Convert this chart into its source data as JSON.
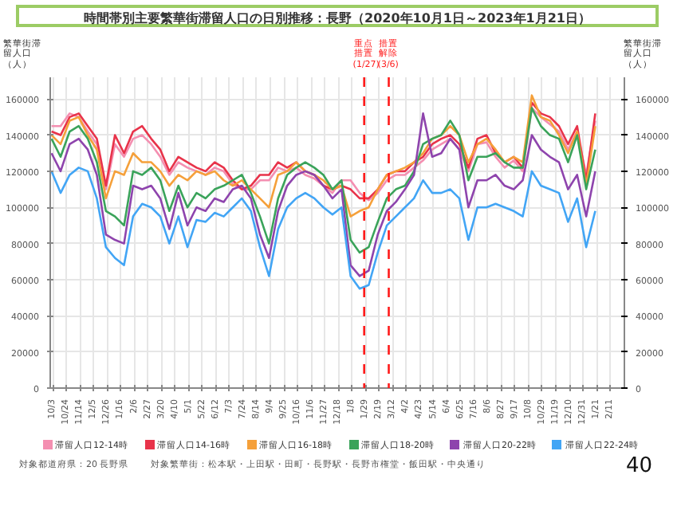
{
  "chart_data": {
    "type": "line",
    "title": "時間帯別主要繁華街滞留人口の日別推移：長野（2020年10月1日～2023年1月21日）",
    "ylabel": "繁華街滞留人口（人）",
    "y2label": "繁華街滞留人口（人）",
    "x": [
      "2020-10-01",
      "2020-10-15",
      "2020-10-29",
      "2020-11-12",
      "2020-11-26",
      "2020-12-10",
      "2020-12-24",
      "2021-01-07",
      "2021-01-21",
      "2021-02-04",
      "2021-02-18",
      "2021-03-04",
      "2021-03-18",
      "2021-04-01",
      "2021-04-15",
      "2021-04-29",
      "2021-05-13",
      "2021-05-27",
      "2021-06-10",
      "2021-06-24",
      "2021-07-08",
      "2021-07-22",
      "2021-08-05",
      "2021-08-19",
      "2021-09-02",
      "2021-09-16",
      "2021-09-30",
      "2021-10-14",
      "2021-10-28",
      "2021-11-11",
      "2021-11-25",
      "2021-12-09",
      "2021-12-23",
      "2022-01-06",
      "2022-01-20",
      "2022-02-03",
      "2022-02-17",
      "2022-03-03",
      "2022-03-17",
      "2022-03-31",
      "2022-04-14",
      "2022-04-28",
      "2022-05-12",
      "2022-05-26",
      "2022-06-09",
      "2022-06-23",
      "2022-07-07",
      "2022-07-21",
      "2022-08-04",
      "2022-08-18",
      "2022-09-01",
      "2022-09-15",
      "2022-09-29",
      "2022-10-13",
      "2022-10-27",
      "2022-11-10",
      "2022-11-24",
      "2022-12-08",
      "2022-12-22",
      "2023-01-05",
      "2023-01-19"
    ],
    "series": [
      {
        "name": "滞留人口12-14時",
        "color": "#f48fb1",
        "values": [
          145000,
          145000,
          152000,
          150000,
          142000,
          135000,
          110000,
          135000,
          128000,
          138000,
          140000,
          135000,
          128000,
          118000,
          125000,
          122000,
          120000,
          118000,
          122000,
          120000,
          113000,
          110000,
          110000,
          115000,
          115000,
          122000,
          120000,
          122000,
          118000,
          116000,
          112000,
          108000,
          115000,
          115000,
          108000,
          104000,
          108000,
          115000,
          118000,
          118000,
          122000,
          126000,
          132000,
          135000,
          138000,
          132000,
          120000,
          135000,
          136000,
          128000,
          122000,
          126000,
          120000,
          155000,
          150000,
          146000,
          142000,
          132000,
          142000,
          118000,
          148000
        ]
      },
      {
        "name": "滞留人口14-16時",
        "color": "#e8334a",
        "values": [
          142000,
          140000,
          150000,
          152000,
          145000,
          138000,
          112000,
          140000,
          130000,
          142000,
          145000,
          138000,
          132000,
          120000,
          128000,
          125000,
          122000,
          120000,
          125000,
          122000,
          115000,
          110000,
          112000,
          118000,
          118000,
          125000,
          122000,
          125000,
          120000,
          118000,
          112000,
          110000,
          112000,
          110000,
          105000,
          105000,
          110000,
          118000,
          120000,
          120000,
          125000,
          128000,
          135000,
          138000,
          140000,
          135000,
          122000,
          138000,
          140000,
          130000,
          125000,
          128000,
          122000,
          158000,
          152000,
          150000,
          145000,
          135000,
          145000,
          115000,
          152000
        ]
      },
      {
        "name": "滞留人口16-18時",
        "color": "#f5a03a",
        "values": [
          140000,
          135000,
          148000,
          150000,
          140000,
          132000,
          105000,
          120000,
          118000,
          130000,
          125000,
          125000,
          120000,
          112000,
          118000,
          115000,
          120000,
          118000,
          120000,
          115000,
          112000,
          115000,
          110000,
          105000,
          100000,
          118000,
          120000,
          125000,
          120000,
          118000,
          115000,
          110000,
          112000,
          95000,
          98000,
          100000,
          110000,
          118000,
          120000,
          122000,
          125000,
          130000,
          138000,
          140000,
          145000,
          140000,
          125000,
          135000,
          138000,
          132000,
          125000,
          128000,
          125000,
          162000,
          150000,
          148000,
          140000,
          130000,
          142000,
          112000,
          145000
        ]
      },
      {
        "name": "滞留人口18-20時",
        "color": "#3aa35a",
        "values": [
          138000,
          128000,
          142000,
          145000,
          138000,
          125000,
          98000,
          95000,
          90000,
          120000,
          118000,
          122000,
          115000,
          98000,
          112000,
          100000,
          108000,
          105000,
          110000,
          112000,
          115000,
          118000,
          108000,
          95000,
          80000,
          105000,
          118000,
          122000,
          125000,
          122000,
          118000,
          110000,
          115000,
          82000,
          75000,
          78000,
          92000,
          105000,
          110000,
          112000,
          120000,
          135000,
          138000,
          140000,
          148000,
          140000,
          115000,
          128000,
          128000,
          130000,
          125000,
          122000,
          122000,
          155000,
          145000,
          140000,
          138000,
          125000,
          140000,
          110000,
          132000
        ]
      },
      {
        "name": "滞留人口20-22時",
        "color": "#8e44ad",
        "values": [
          130000,
          120000,
          135000,
          138000,
          132000,
          118000,
          85000,
          82000,
          80000,
          112000,
          110000,
          112000,
          105000,
          88000,
          108000,
          90000,
          100000,
          98000,
          105000,
          103000,
          110000,
          112000,
          105000,
          85000,
          72000,
          98000,
          112000,
          118000,
          120000,
          118000,
          112000,
          105000,
          110000,
          68000,
          62000,
          65000,
          85000,
          98000,
          103000,
          110000,
          118000,
          152000,
          128000,
          130000,
          138000,
          132000,
          100000,
          115000,
          115000,
          118000,
          112000,
          110000,
          115000,
          140000,
          132000,
          128000,
          125000,
          110000,
          118000,
          95000,
          120000
        ]
      },
      {
        "name": "滞留人口22-24時",
        "color": "#42a5f5",
        "values": [
          120000,
          108000,
          118000,
          122000,
          120000,
          105000,
          78000,
          72000,
          68000,
          95000,
          102000,
          100000,
          95000,
          80000,
          95000,
          78000,
          93000,
          92000,
          97000,
          95000,
          100000,
          105000,
          98000,
          78000,
          62000,
          88000,
          100000,
          105000,
          108000,
          105000,
          100000,
          96000,
          100000,
          62000,
          55000,
          57000,
          75000,
          90000,
          95000,
          100000,
          105000,
          115000,
          108000,
          108000,
          110000,
          105000,
          82000,
          100000,
          100000,
          102000,
          100000,
          98000,
          95000,
          120000,
          112000,
          110000,
          108000,
          92000,
          105000,
          78000,
          98000
        ]
      }
    ],
    "xlim": [
      "2020-09-29",
      "2023-03-05"
    ],
    "xticks": [
      {
        "value": "2020-10-03",
        "label": "10/3"
      },
      {
        "value": "2020-10-24",
        "label": "10/24"
      },
      {
        "value": "2020-11-14",
        "label": "11/14"
      },
      {
        "value": "2020-12-05",
        "label": "12/5"
      },
      {
        "value": "2020-12-26",
        "label": "12/26"
      },
      {
        "value": "2021-01-16",
        "label": "1/16"
      },
      {
        "value": "2021-02-06",
        "label": "2/6"
      },
      {
        "value": "2021-02-27",
        "label": "2/27"
      },
      {
        "value": "2021-03-20",
        "label": "3/20"
      },
      {
        "value": "2021-04-10",
        "label": "4/10"
      },
      {
        "value": "2021-05-01",
        "label": "5/1"
      },
      {
        "value": "2021-05-22",
        "label": "5/22"
      },
      {
        "value": "2021-06-12",
        "label": "6/12"
      },
      {
        "value": "2021-07-03",
        "label": "7/3"
      },
      {
        "value": "2021-07-24",
        "label": "7/24"
      },
      {
        "value": "2021-08-14",
        "label": "8/14"
      },
      {
        "value": "2021-09-04",
        "label": "9/4"
      },
      {
        "value": "2021-09-25",
        "label": "9/25"
      },
      {
        "value": "2021-10-16",
        "label": "10/16"
      },
      {
        "value": "2021-11-06",
        "label": "11/6"
      },
      {
        "value": "2021-11-27",
        "label": "11/27"
      },
      {
        "value": "2021-12-18",
        "label": "12/18"
      },
      {
        "value": "2022-01-08",
        "label": "1/8"
      },
      {
        "value": "2022-01-29",
        "label": "1/29"
      },
      {
        "value": "2022-02-19",
        "label": "2/19"
      },
      {
        "value": "2022-03-12",
        "label": "3/12"
      },
      {
        "value": "2022-04-02",
        "label": "4/2"
      },
      {
        "value": "2022-04-23",
        "label": "4/23"
      },
      {
        "value": "2022-05-14",
        "label": "5/14"
      },
      {
        "value": "2022-06-04",
        "label": "6/4"
      },
      {
        "value": "2022-06-25",
        "label": "6/25"
      },
      {
        "value": "2022-07-16",
        "label": "7/16"
      },
      {
        "value": "2022-08-06",
        "label": "8/6"
      },
      {
        "value": "2022-08-27",
        "label": "8/27"
      },
      {
        "value": "2022-09-17",
        "label": "9/17"
      },
      {
        "value": "2022-10-08",
        "label": "10/8"
      },
      {
        "value": "2022-10-29",
        "label": "10/29"
      },
      {
        "value": "2022-11-19",
        "label": "11/19"
      },
      {
        "value": "2022-12-10",
        "label": "12/10"
      },
      {
        "value": "2022-12-31",
        "label": "12/31"
      },
      {
        "value": "2023-01-21",
        "label": "1/21"
      },
      {
        "value": "2023-02-11",
        "label": "2/11"
      }
    ],
    "ylim": [
      0,
      172000
    ],
    "yticks": [
      0,
      20000,
      40000,
      60000,
      80000,
      100000,
      120000,
      140000,
      160000
    ],
    "y2lim": [
      0,
      172000
    ],
    "y2ticks": [
      0,
      20000,
      40000,
      60000,
      80000,
      100000,
      120000,
      140000,
      160000
    ],
    "ref_lines": [
      {
        "axis": "x",
        "value": "2022-01-27",
        "label": "重点措置(1/27)",
        "color": "#ff1a1a",
        "line_style": "dashed"
      },
      {
        "axis": "x",
        "value": "2022-03-06",
        "label": "措置解除(3/6)",
        "color": "#ff1a1a",
        "line_style": "dashed"
      }
    ],
    "grid": true,
    "legend": "bottom",
    "line_style": "solid",
    "marker": "none",
    "annotations": [
      "対象都道府県：20 長野県",
      "対象繁華街：松本駅・上田駅・田町・長野駅・長野市権堂・飯田駅・中央通り",
      "40"
    ]
  }
}
